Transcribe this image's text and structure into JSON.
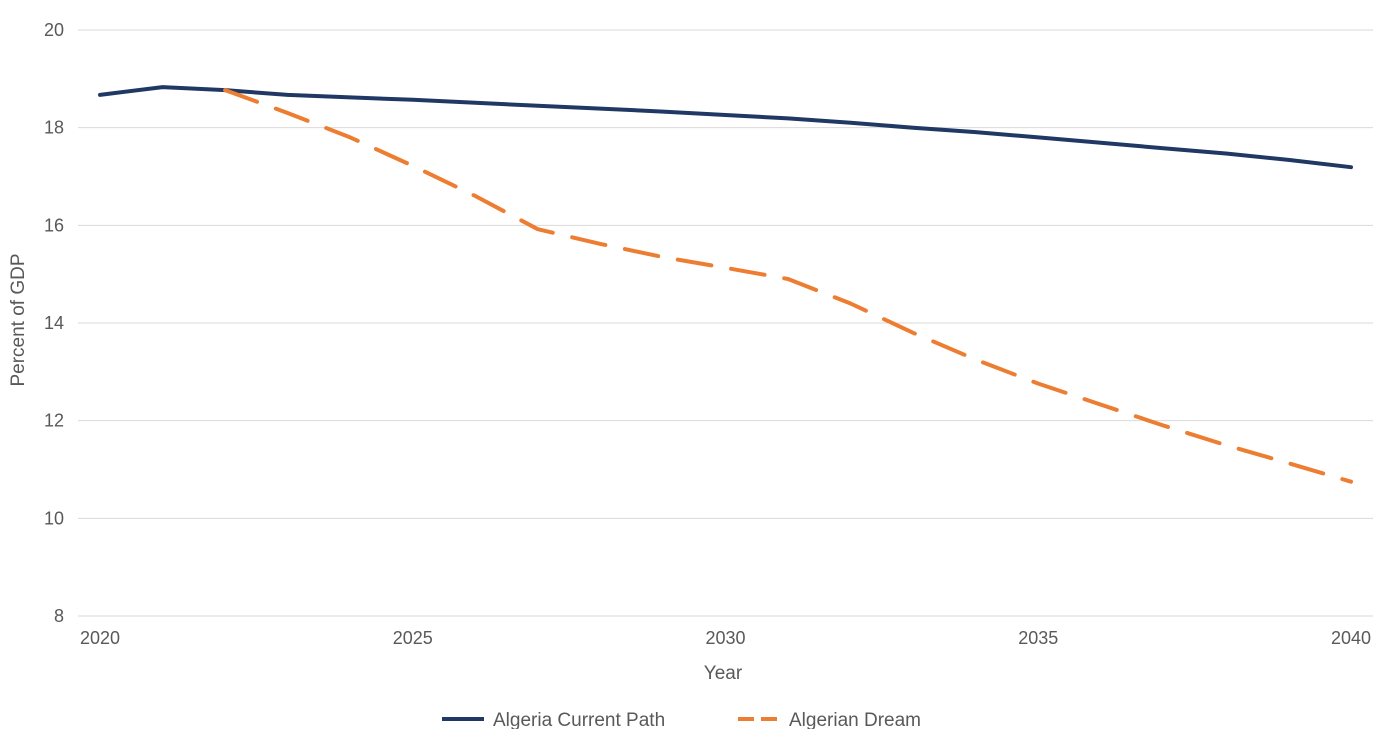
{
  "chart_data": {
    "type": "line",
    "title": "",
    "xlabel": "Year",
    "ylabel": "Percent of GDP",
    "xlim": [
      2020,
      2040
    ],
    "ylim": [
      8,
      20
    ],
    "x_ticks": [
      2020,
      2025,
      2030,
      2035,
      2040
    ],
    "y_ticks": [
      8,
      10,
      12,
      14,
      16,
      18,
      20
    ],
    "grid": "horizontal",
    "legend_position": "bottom-center",
    "series": [
      {
        "name": "Algeria Current Path",
        "color": "#1f3864",
        "style": "solid",
        "x": [
          2020,
          2021,
          2022,
          2023,
          2024,
          2025,
          2026,
          2027,
          2028,
          2029,
          2030,
          2031,
          2032,
          2033,
          2034,
          2035,
          2036,
          2037,
          2038,
          2039,
          2040
        ],
        "values": [
          18.67,
          18.83,
          18.77,
          18.67,
          18.62,
          18.57,
          18.51,
          18.45,
          18.39,
          18.33,
          18.26,
          18.19,
          18.1,
          18.0,
          17.91,
          17.8,
          17.69,
          17.58,
          17.47,
          17.34,
          17.19
        ]
      },
      {
        "name": "Algerian Dream",
        "color": "#ed7d31",
        "style": "dashed",
        "x": [
          2022,
          2023,
          2024,
          2025,
          2026,
          2027,
          2028,
          2029,
          2030,
          2031,
          2032,
          2033,
          2034,
          2035,
          2036,
          2037,
          2038,
          2039,
          2040
        ],
        "values": [
          18.77,
          18.3,
          17.8,
          17.22,
          16.6,
          15.92,
          15.62,
          15.35,
          15.13,
          14.9,
          14.4,
          13.8,
          13.25,
          12.76,
          12.33,
          11.9,
          11.5,
          11.13,
          10.75
        ]
      }
    ]
  }
}
